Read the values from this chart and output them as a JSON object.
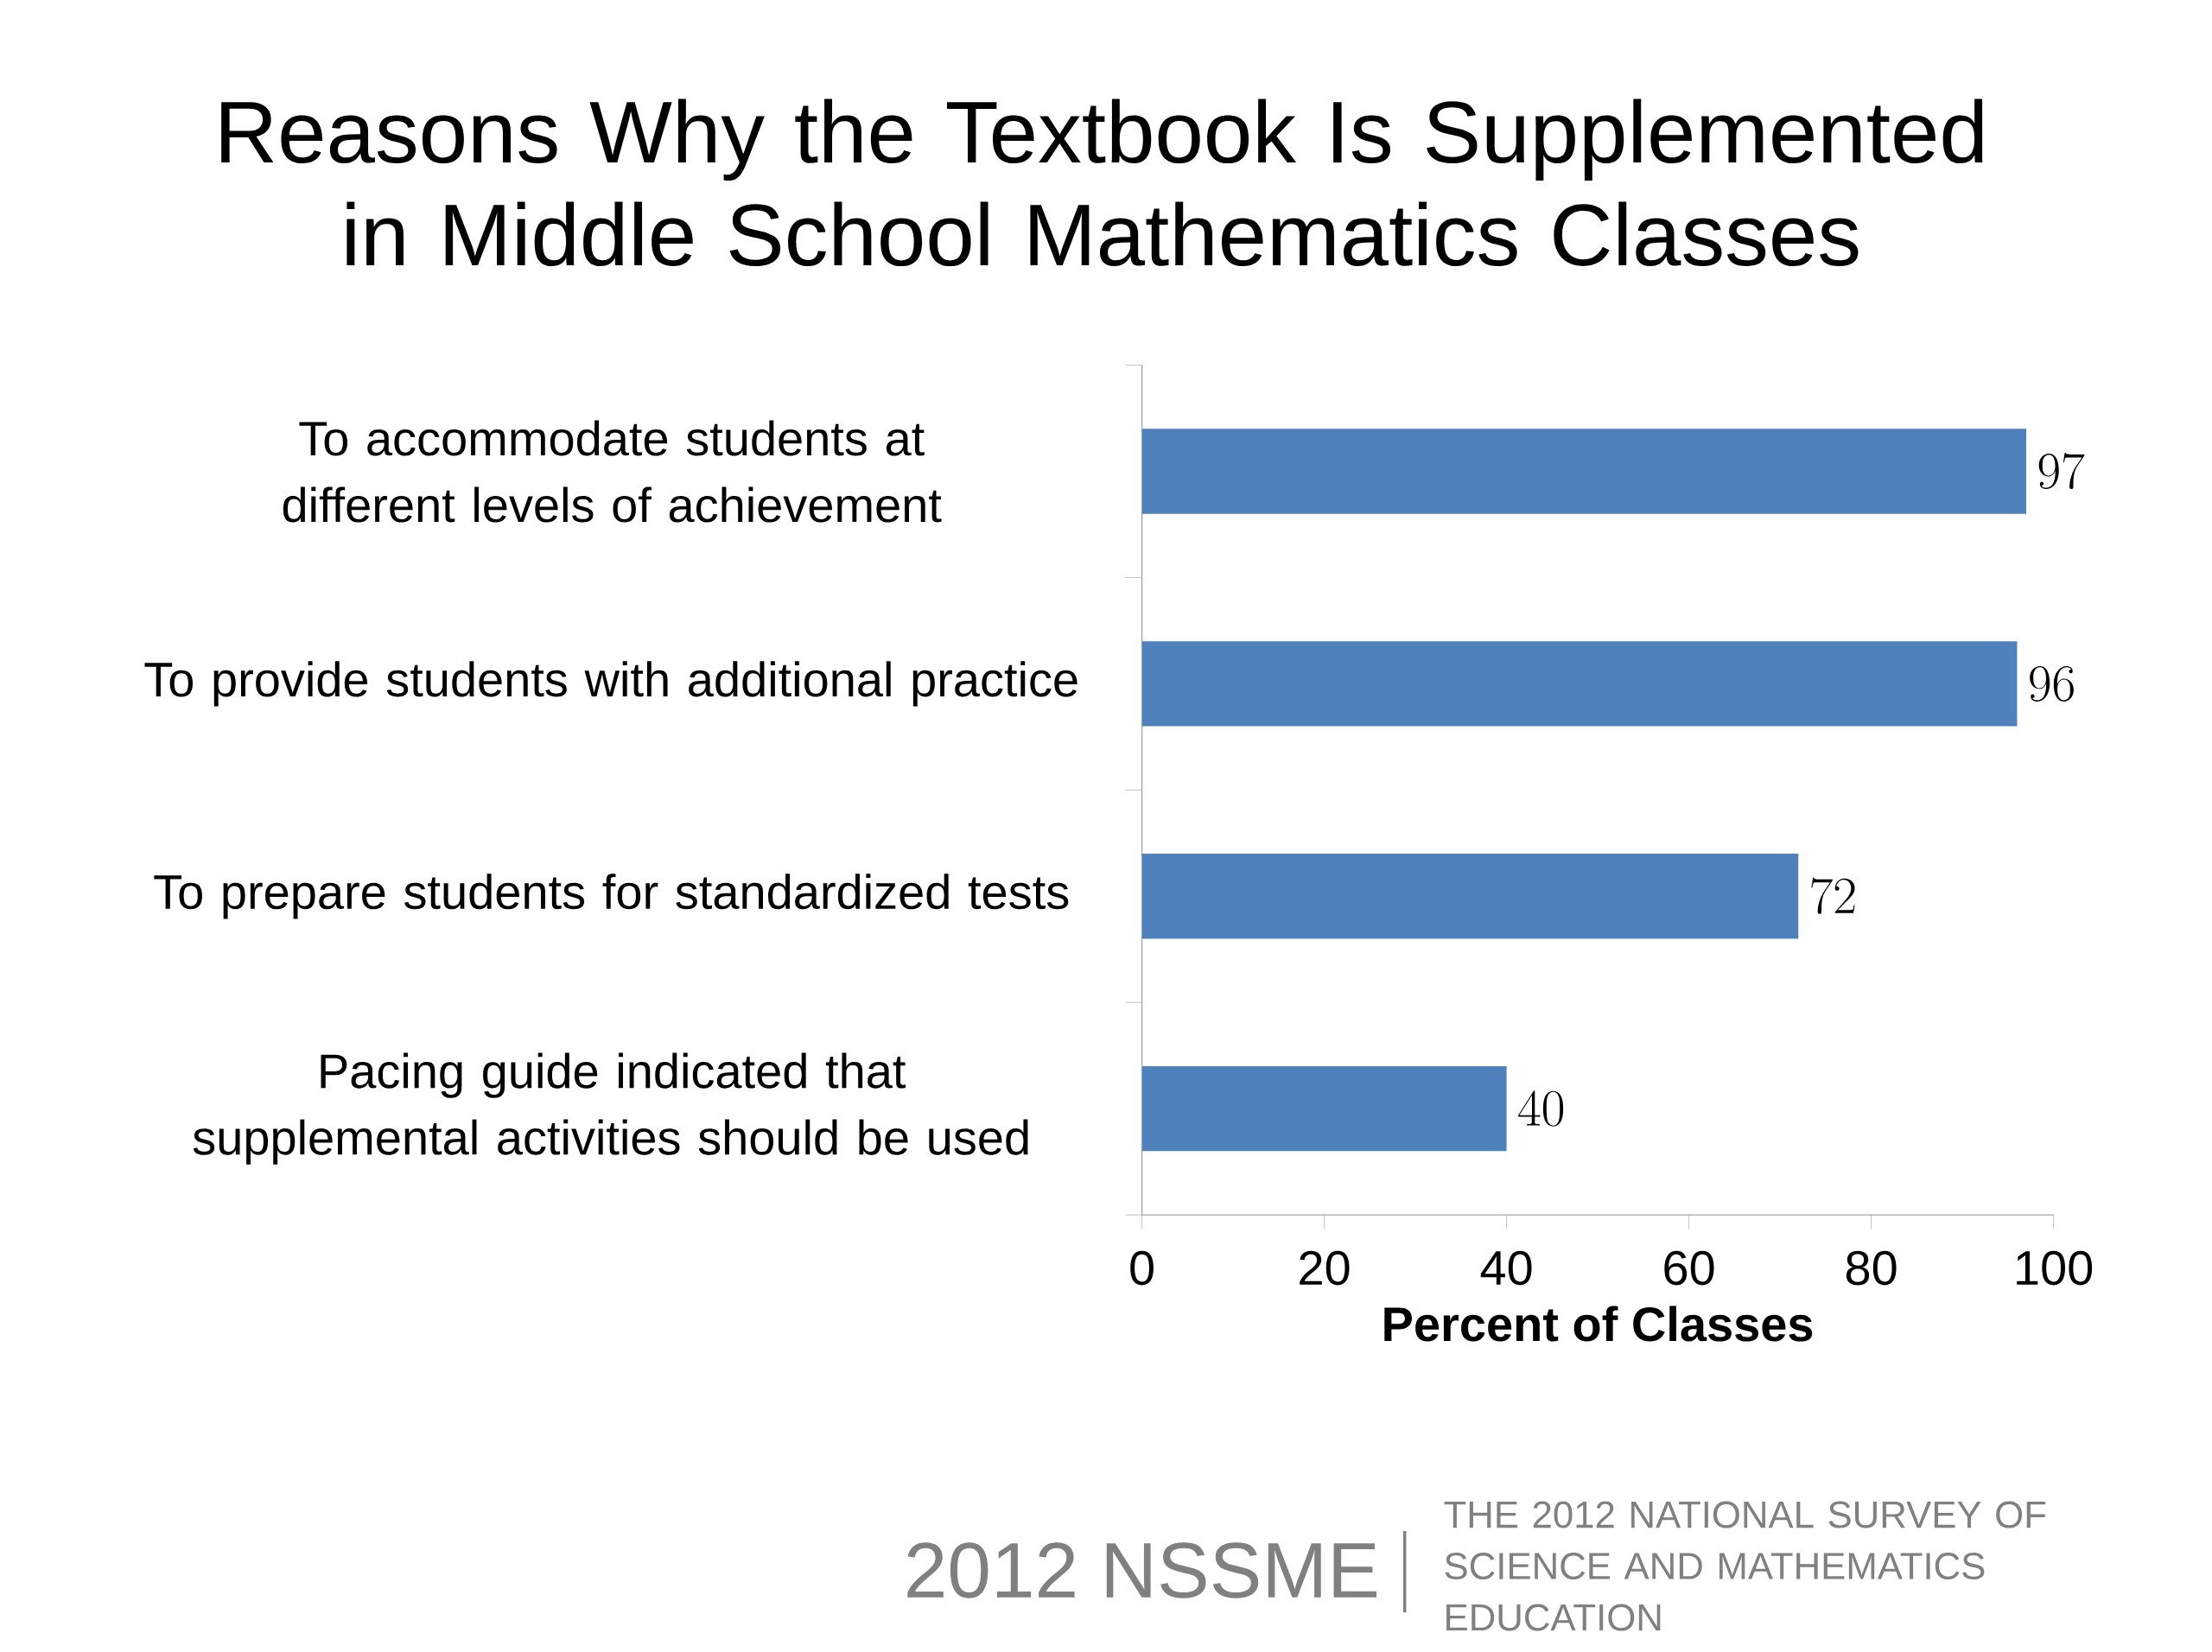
{
  "chart_data": {
    "type": "bar",
    "orientation": "horizontal",
    "title": "Reasons Why the Textbook Is Supplemented in Middle School Mathematics Classes",
    "categories": [
      "To accommodate students at different levels of achievement",
      "To provide students with additional practice",
      "To prepare students for standardized tests",
      "Pacing guide indicated that supplemental activities should be used"
    ],
    "values": [
      97,
      96,
      72,
      40
    ],
    "color": "#4f81bd",
    "xlim": [
      0,
      100
    ],
    "xticks": [
      0,
      20,
      40,
      60,
      80,
      100
    ],
    "xlabel": "Percent of Classes",
    "data_labels": true,
    "annotations": [
      "2012 NSSME",
      "THE 2012 NATIONAL SURVEY OF SCIENCE AND MATHEMATICS EDUCATION"
    ]
  }
}
